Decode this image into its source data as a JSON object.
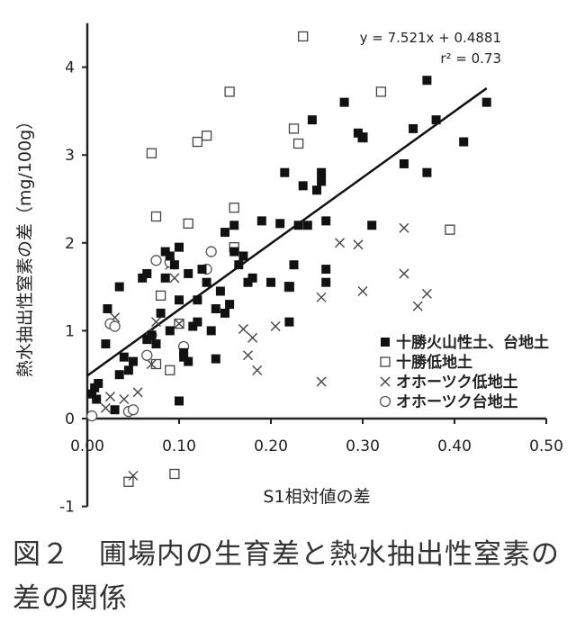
{
  "chart_data": {
    "type": "scatter",
    "xlabel": "S1相対値の差",
    "ylabel": "熱水抽出性窒素の差（mg/100g）",
    "xlim": [
      0,
      0.5
    ],
    "ylim": [
      -1,
      4.5
    ],
    "x_ticks": [
      "0.00",
      "0.10",
      "0.20",
      "0.30",
      "0.40",
      "0.50"
    ],
    "y_ticks": [
      "-1",
      "0",
      "1",
      "2",
      "3",
      "4"
    ],
    "equation": "y = 7.521x + 0.4881",
    "r2": "r² = 0.73",
    "trendline": {
      "slope": 7.521,
      "intercept": 0.4881,
      "x_range": [
        0,
        0.435
      ]
    },
    "legend_position": "lower-right",
    "series": [
      {
        "name": "十勝火山性土、台地土",
        "marker": "filled-square",
        "points": [
          [
            0.005,
            0.28
          ],
          [
            0.008,
            0.35
          ],
          [
            0.01,
            0.22
          ],
          [
            0.012,
            0.4
          ],
          [
            0.02,
            0.85
          ],
          [
            0.022,
            1.25
          ],
          [
            0.03,
            0.1
          ],
          [
            0.035,
            0.5
          ],
          [
            0.035,
            1.5
          ],
          [
            0.04,
            0.7
          ],
          [
            0.045,
            0.55
          ],
          [
            0.05,
            0.65
          ],
          [
            0.06,
            1.6
          ],
          [
            0.065,
            0.9
          ],
          [
            0.065,
            1.65
          ],
          [
            0.07,
            0.95
          ],
          [
            0.075,
            0.85
          ],
          [
            0.08,
            1.2
          ],
          [
            0.085,
            1.6
          ],
          [
            0.085,
            1.9
          ],
          [
            0.09,
            1.0
          ],
          [
            0.09,
            1.85
          ],
          [
            0.095,
            1.75
          ],
          [
            0.1,
            1.95
          ],
          [
            0.1,
            1.35
          ],
          [
            0.1,
            0.2
          ],
          [
            0.105,
            0.7
          ],
          [
            0.105,
            0.75
          ],
          [
            0.11,
            1.65
          ],
          [
            0.11,
            0.65
          ],
          [
            0.115,
            1.05
          ],
          [
            0.12,
            1.1
          ],
          [
            0.12,
            1.35
          ],
          [
            0.125,
            1.7
          ],
          [
            0.13,
            1.55
          ],
          [
            0.135,
            1.0
          ],
          [
            0.14,
            0.68
          ],
          [
            0.14,
            1.25
          ],
          [
            0.145,
            1.45
          ],
          [
            0.15,
            1.2
          ],
          [
            0.15,
            2.12
          ],
          [
            0.155,
            1.3
          ],
          [
            0.16,
            1.9
          ],
          [
            0.16,
            2.2
          ],
          [
            0.165,
            1.75
          ],
          [
            0.17,
            1.85
          ],
          [
            0.175,
            1.55
          ],
          [
            0.18,
            1.6
          ],
          [
            0.19,
            2.25
          ],
          [
            0.2,
            1.55
          ],
          [
            0.21,
            2.22
          ],
          [
            0.215,
            2.8
          ],
          [
            0.22,
            1.5
          ],
          [
            0.22,
            1.1
          ],
          [
            0.225,
            1.75
          ],
          [
            0.23,
            2.2
          ],
          [
            0.235,
            2.65
          ],
          [
            0.24,
            2.2
          ],
          [
            0.245,
            3.4
          ],
          [
            0.25,
            2.6
          ],
          [
            0.255,
            2.8
          ],
          [
            0.255,
            2.7
          ],
          [
            0.26,
            1.7
          ],
          [
            0.26,
            1.55
          ],
          [
            0.26,
            2.25
          ],
          [
            0.28,
            3.6
          ],
          [
            0.295,
            3.25
          ],
          [
            0.3,
            3.2
          ],
          [
            0.31,
            2.2
          ],
          [
            0.345,
            2.9
          ],
          [
            0.355,
            3.3
          ],
          [
            0.37,
            2.8
          ],
          [
            0.37,
            3.85
          ],
          [
            0.38,
            3.4
          ],
          [
            0.41,
            3.15
          ],
          [
            0.435,
            3.6
          ]
        ]
      },
      {
        "name": "十勝低地土",
        "marker": "open-square",
        "points": [
          [
            0.045,
            -0.72
          ],
          [
            0.07,
            3.02
          ],
          [
            0.075,
            0.62
          ],
          [
            0.075,
            2.3
          ],
          [
            0.08,
            1.4
          ],
          [
            0.09,
            0.55
          ],
          [
            0.095,
            -0.63
          ],
          [
            0.1,
            1.08
          ],
          [
            0.11,
            2.22
          ],
          [
            0.12,
            3.15
          ],
          [
            0.13,
            3.22
          ],
          [
            0.155,
            3.72
          ],
          [
            0.16,
            1.95
          ],
          [
            0.16,
            2.4
          ],
          [
            0.22,
            1.5
          ],
          [
            0.23,
            3.13
          ],
          [
            0.235,
            4.35
          ],
          [
            0.3,
            3.2
          ],
          [
            0.32,
            3.72
          ],
          [
            0.395,
            2.15
          ],
          [
            0.225,
            3.3
          ]
        ]
      },
      {
        "name": "オホーツク低地土",
        "marker": "x",
        "points": [
          [
            0.02,
            0.12
          ],
          [
            0.025,
            0.25
          ],
          [
            0.03,
            1.15
          ],
          [
            0.04,
            0.22
          ],
          [
            0.05,
            -0.65
          ],
          [
            0.055,
            0.3
          ],
          [
            0.07,
            0.62
          ],
          [
            0.075,
            1.1
          ],
          [
            0.09,
            1.75
          ],
          [
            0.095,
            1.6
          ],
          [
            0.1,
            1.08
          ],
          [
            0.17,
            1.02
          ],
          [
            0.175,
            0.72
          ],
          [
            0.18,
            0.92
          ],
          [
            0.185,
            0.55
          ],
          [
            0.205,
            1.05
          ],
          [
            0.255,
            1.38
          ],
          [
            0.255,
            0.42
          ],
          [
            0.275,
            2.0
          ],
          [
            0.295,
            1.98
          ],
          [
            0.3,
            1.45
          ],
          [
            0.345,
            2.17
          ],
          [
            0.345,
            1.65
          ],
          [
            0.36,
            1.28
          ],
          [
            0.37,
            1.42
          ]
        ]
      },
      {
        "name": "オホーツク台地土",
        "marker": "open-circle",
        "points": [
          [
            0.005,
            0.03
          ],
          [
            0.025,
            1.08
          ],
          [
            0.03,
            1.05
          ],
          [
            0.045,
            0.08
          ],
          [
            0.05,
            0.1
          ],
          [
            0.065,
            0.72
          ],
          [
            0.07,
            0.95
          ],
          [
            0.075,
            1.8
          ],
          [
            0.09,
            1.78
          ],
          [
            0.105,
            0.82
          ],
          [
            0.13,
            1.7
          ],
          [
            0.135,
            1.9
          ]
        ]
      }
    ]
  },
  "caption": {
    "line1": "図２　圃場内の生育差と熱水抽出性窒素の",
    "line2": "差の関係"
  }
}
